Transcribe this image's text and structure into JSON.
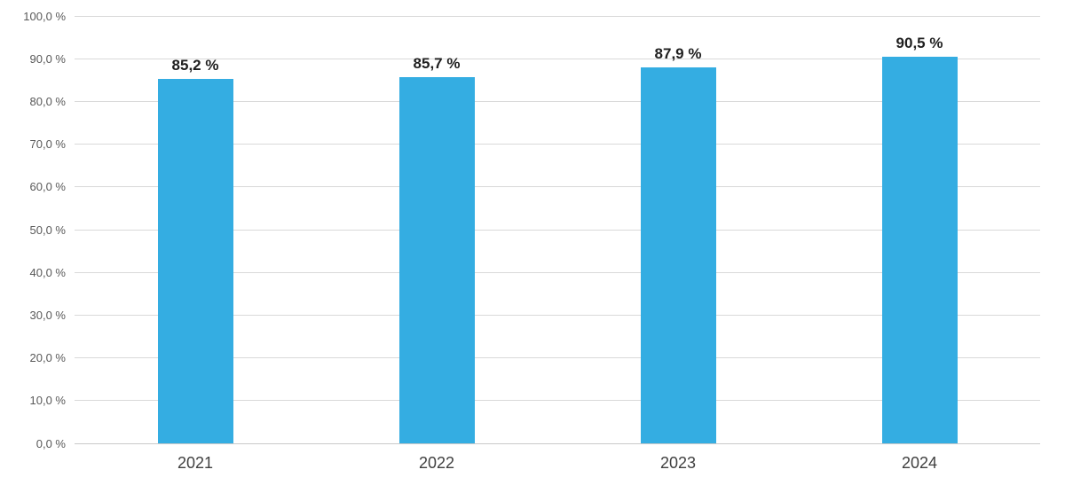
{
  "chart_data": {
    "type": "bar",
    "title": "",
    "xlabel": "",
    "ylabel": "",
    "categories": [
      "2021",
      "2022",
      "2023",
      "2024"
    ],
    "values": [
      85.2,
      85.7,
      87.9,
      90.5
    ],
    "value_labels": [
      "85,2 %",
      "85,7 %",
      "87,9 %",
      "90,5 %"
    ],
    "y_tick_values": [
      0,
      10,
      20,
      30,
      40,
      50,
      60,
      70,
      80,
      90,
      100
    ],
    "y_tick_labels": [
      "0,0 %",
      "10,0 %",
      "20,0 %",
      "30,0 %",
      "40,0 %",
      "50,0 %",
      "60,0 %",
      "70,0 %",
      "80,0 %",
      "90,0 %",
      "100,0 %"
    ],
    "ylim": [
      0,
      100
    ],
    "grid": "horizontal",
    "legend": "none",
    "colors": {
      "bar": "#34ADE2",
      "gridline": "#D9D9D9",
      "baseline": "#C9C9C9",
      "y_tick_text": "#595959",
      "x_tick_text": "#404040",
      "value_label_text": "#1F1F1F",
      "background": "#FFFFFF"
    }
  }
}
